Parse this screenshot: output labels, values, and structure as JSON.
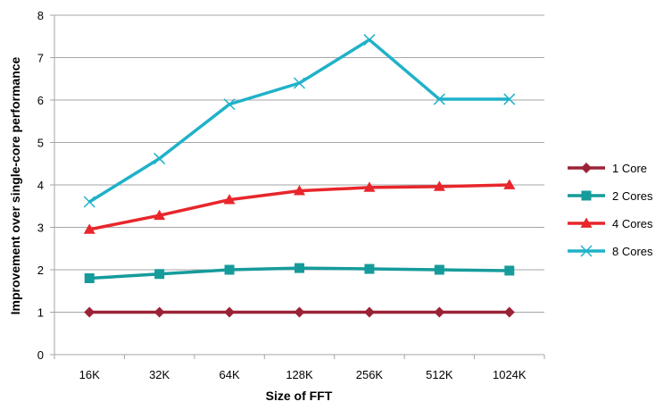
{
  "chart_data": {
    "type": "line",
    "title": "",
    "xlabel": "Size of FFT",
    "ylabel": "Improvement over single-core performance",
    "categories": [
      "16K",
      "32K",
      "64K",
      "128K",
      "256K",
      "512K",
      "1024K"
    ],
    "ylim": [
      0,
      8
    ],
    "yticks": [
      0,
      1,
      2,
      3,
      4,
      5,
      6,
      7,
      8
    ],
    "grid": true,
    "legend": "right",
    "series": [
      {
        "name": "1 Core",
        "color": "#9b2335",
        "marker": "diamond",
        "values": [
          1,
          1,
          1,
          1,
          1,
          1,
          1
        ]
      },
      {
        "name": "2 Cores",
        "color": "#169b9b",
        "marker": "square",
        "values": [
          1.8,
          1.9,
          2.0,
          2.04,
          2.02,
          2.0,
          1.98
        ]
      },
      {
        "name": "4 Cores",
        "color": "#e8262b",
        "marker": "triangle",
        "values": [
          2.95,
          3.28,
          3.65,
          3.86,
          3.94,
          3.96,
          4.0
        ]
      },
      {
        "name": "8 Cores",
        "color": "#1fb2c9",
        "marker": "x",
        "values": [
          3.6,
          4.62,
          5.9,
          6.4,
          7.42,
          6.02,
          6.02
        ]
      }
    ]
  }
}
